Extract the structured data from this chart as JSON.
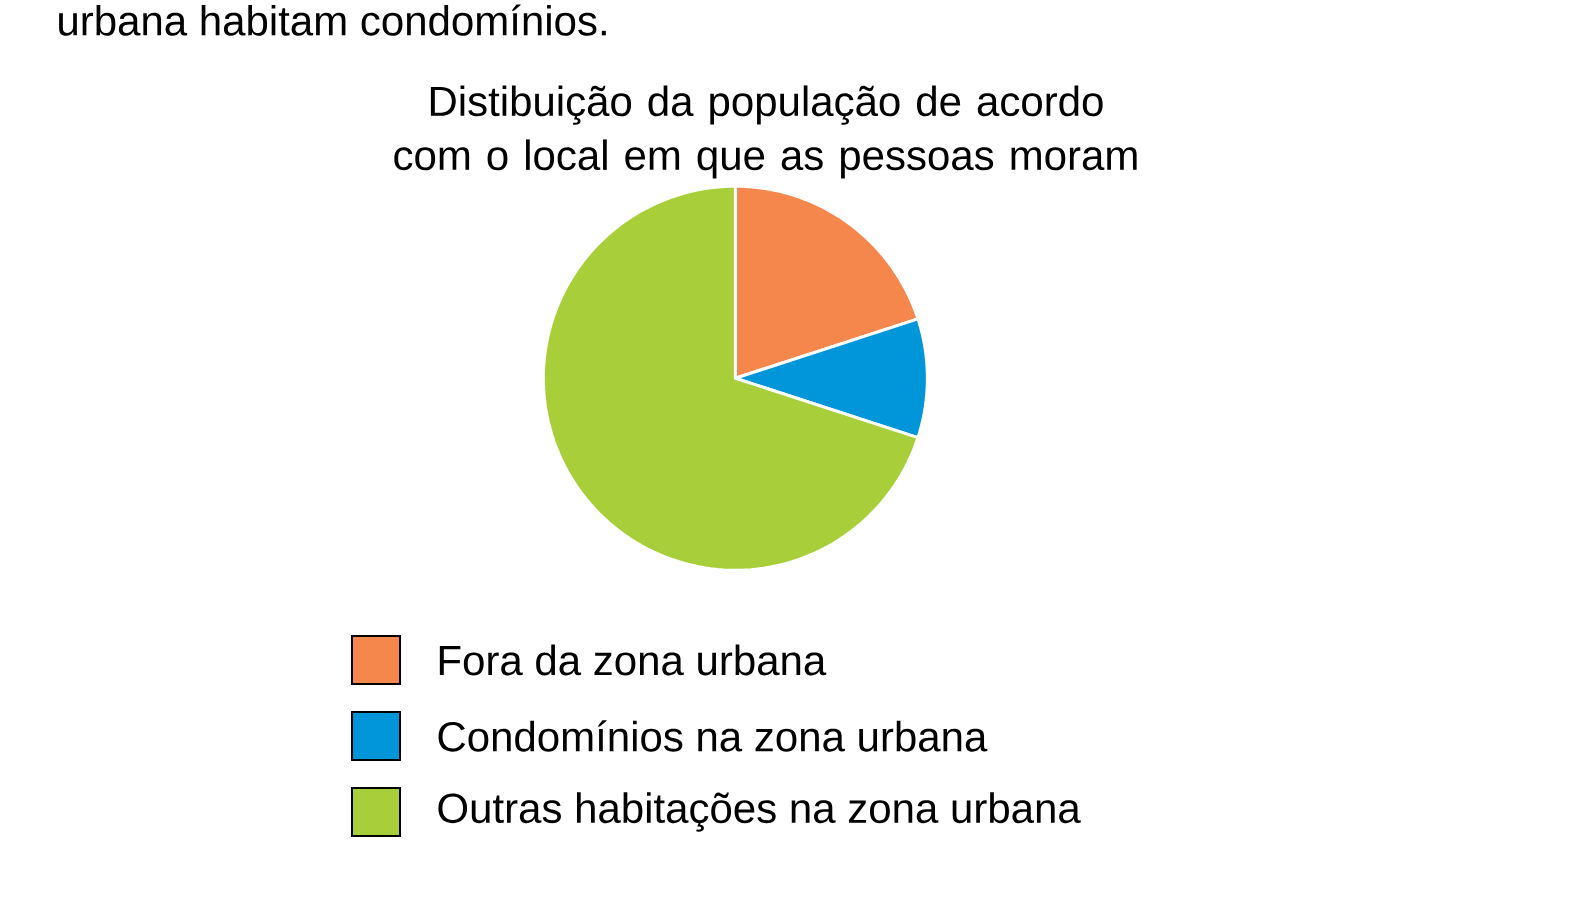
{
  "chart_data": {
    "type": "pie",
    "title": "Distibuição da população de acordo com o local em que as pessoas moram",
    "annotations": [
      "urbana habitam condomínios."
    ],
    "categories": [
      "Fora da zona urbana",
      "Condomínios na zona urbana",
      "Outras habitações na zona urbana"
    ],
    "values": [
      20,
      10,
      70
    ],
    "colors": [
      "#f5874c",
      "#0096d9",
      "#a8cf3a"
    ],
    "legend": "bottom"
  }
}
